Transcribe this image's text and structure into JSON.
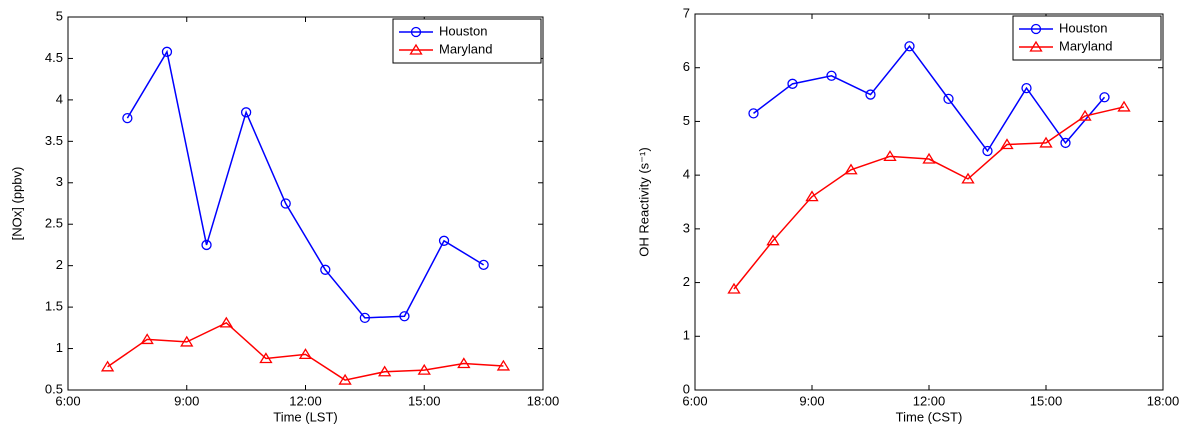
{
  "chart_data": [
    {
      "type": "line",
      "xlabel": "Time (LST)",
      "ylabel": "[NOx]  (ppbv)",
      "xlim": [
        6,
        18
      ],
      "xticks": [
        {
          "value": 6,
          "label": "6:00"
        },
        {
          "value": 9,
          "label": "9:00"
        },
        {
          "value": 12,
          "label": "12:00"
        },
        {
          "value": 15,
          "label": "15:00"
        },
        {
          "value": 18,
          "label": "18:00"
        }
      ],
      "ylim": [
        0.5,
        5
      ],
      "yticks": [
        0.5,
        1,
        1.5,
        2,
        2.5,
        3,
        3.5,
        4,
        4.5,
        5
      ],
      "legend": "upper right",
      "grid": false,
      "series": [
        {
          "name": "Houston",
          "color": "#0000ff",
          "marker": "circle",
          "x": [
            7.5,
            8.5,
            9.5,
            10.5,
            11.5,
            12.5,
            13.5,
            14.5,
            15.5,
            16.5
          ],
          "values": [
            3.78,
            4.58,
            2.25,
            3.85,
            2.75,
            1.95,
            1.37,
            1.39,
            2.3,
            2.01
          ]
        },
        {
          "name": "Maryland",
          "color": "#ff0000",
          "marker": "triangle",
          "x": [
            7,
            8,
            9,
            10,
            11,
            12,
            13,
            14,
            15,
            16,
            17
          ],
          "values": [
            0.78,
            1.11,
            1.08,
            1.31,
            0.88,
            0.93,
            0.62,
            0.72,
            0.74,
            0.82,
            0.79
          ]
        }
      ]
    },
    {
      "type": "line",
      "xlabel": "Time (CST)",
      "ylabel": "OH Reactivity  (s⁻¹)",
      "xlim": [
        6,
        18
      ],
      "xticks": [
        {
          "value": 6,
          "label": "6:00"
        },
        {
          "value": 9,
          "label": "9:00"
        },
        {
          "value": 12,
          "label": "12:00"
        },
        {
          "value": 15,
          "label": "15:00"
        },
        {
          "value": 18,
          "label": "18:00"
        }
      ],
      "ylim": [
        0,
        7
      ],
      "yticks": [
        0,
        1,
        2,
        3,
        4,
        5,
        6,
        7
      ],
      "legend": "upper right",
      "grid": false,
      "series": [
        {
          "name": "Houston",
          "color": "#0000ff",
          "marker": "circle",
          "x": [
            7.5,
            8.5,
            9.5,
            10.5,
            11.5,
            12.5,
            13.5,
            14.5,
            15.5,
            16.5
          ],
          "values": [
            5.15,
            5.7,
            5.85,
            5.5,
            6.4,
            5.42,
            4.45,
            5.62,
            4.6,
            5.45
          ]
        },
        {
          "name": "Maryland",
          "color": "#ff0000",
          "marker": "triangle",
          "x": [
            7,
            8,
            9,
            10,
            11,
            12,
            13,
            14,
            15,
            16,
            17
          ],
          "values": [
            1.88,
            2.78,
            3.6,
            4.1,
            4.35,
            4.3,
            3.93,
            4.57,
            4.6,
            5.1,
            5.27
          ]
        }
      ]
    }
  ]
}
